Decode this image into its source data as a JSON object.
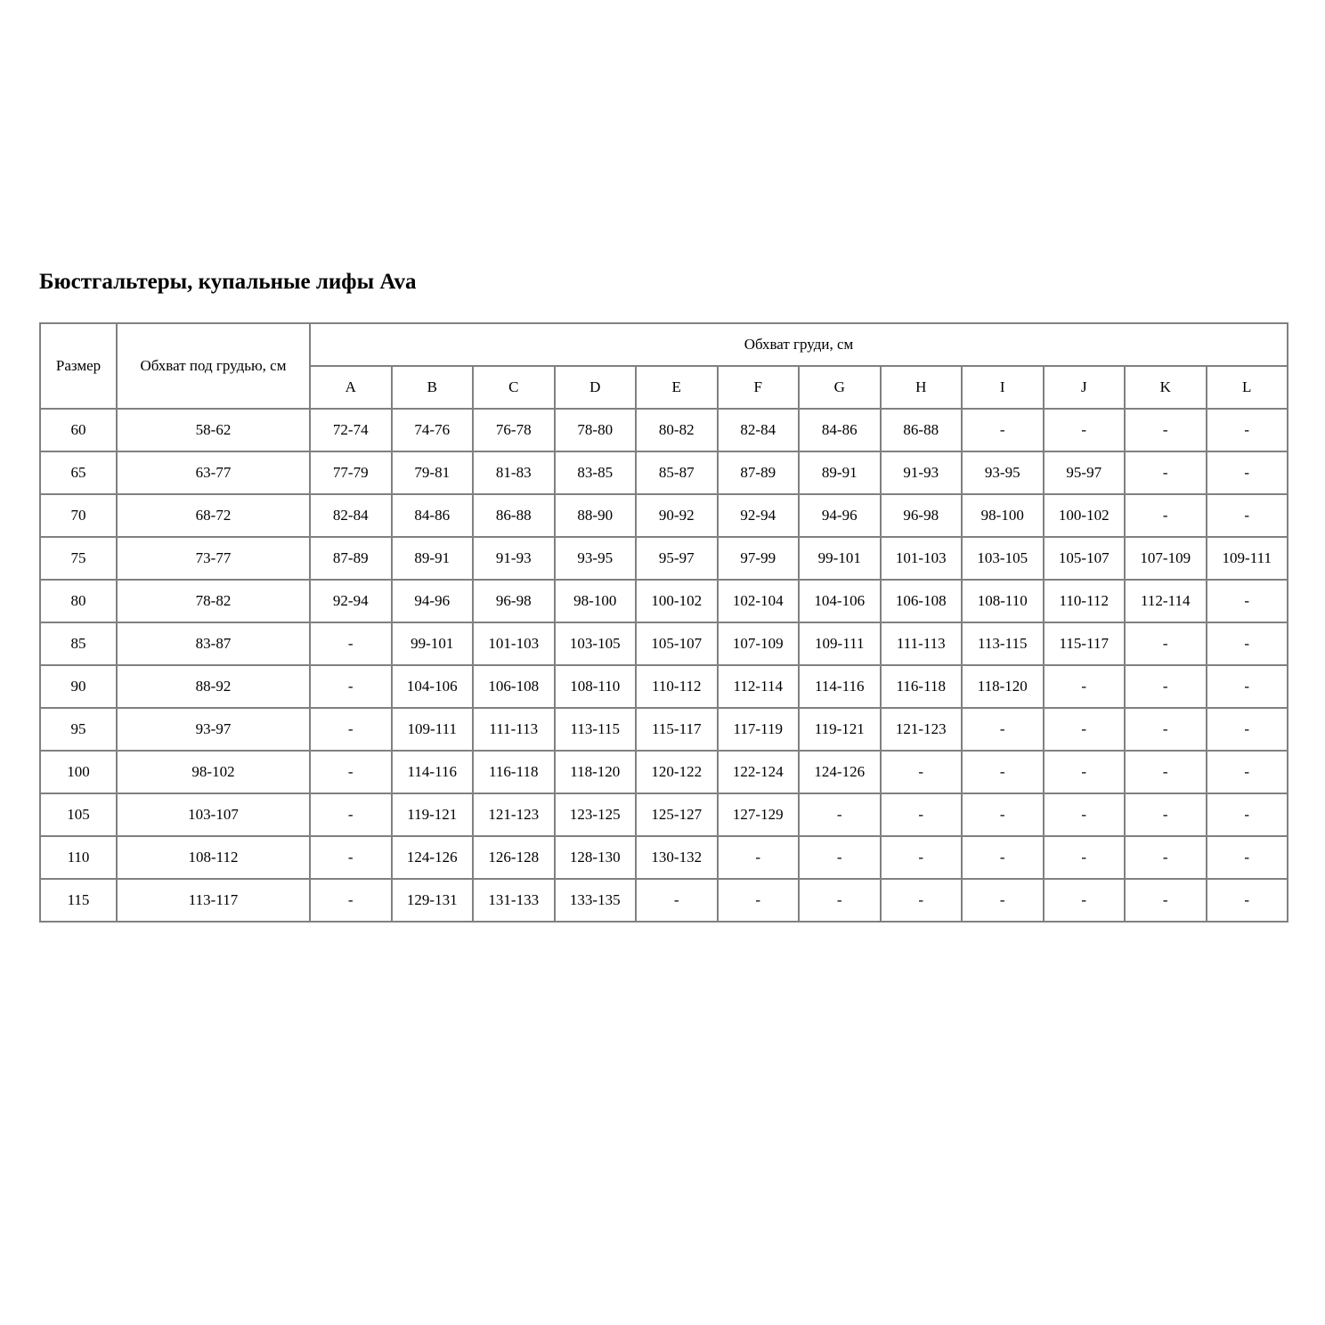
{
  "page": {
    "title": "Бюстгальтеры, купальные лифы Ava"
  },
  "colors": {
    "background": "#ffffff",
    "border": "#808080",
    "text": "#000000"
  },
  "table": {
    "header": {
      "size": "Размер",
      "underbust": "Обхват под грудью, см",
      "bust": "Обхват груди, см",
      "cups": [
        "A",
        "B",
        "C",
        "D",
        "E",
        "F",
        "G",
        "H",
        "I",
        "J",
        "K",
        "L"
      ]
    },
    "empty_marker": "-",
    "rows": [
      {
        "size": "60",
        "underbust": "58-62",
        "cups": [
          "72-74",
          "74-76",
          "76-78",
          "78-80",
          "80-82",
          "82-84",
          "84-86",
          "86-88",
          "-",
          "-",
          "-",
          "-"
        ]
      },
      {
        "size": "65",
        "underbust": "63-77",
        "cups": [
          "77-79",
          "79-81",
          "81-83",
          "83-85",
          "85-87",
          "87-89",
          "89-91",
          "91-93",
          "93-95",
          "95-97",
          "-",
          "-"
        ]
      },
      {
        "size": "70",
        "underbust": "68-72",
        "cups": [
          "82-84",
          "84-86",
          "86-88",
          "88-90",
          "90-92",
          "92-94",
          "94-96",
          "96-98",
          "98-100",
          "100-102",
          "-",
          "-"
        ]
      },
      {
        "size": "75",
        "underbust": "73-77",
        "cups": [
          "87-89",
          "89-91",
          "91-93",
          "93-95",
          "95-97",
          "97-99",
          "99-101",
          "101-103",
          "103-105",
          "105-107",
          "107-109",
          "109-111"
        ]
      },
      {
        "size": "80",
        "underbust": "78-82",
        "cups": [
          "92-94",
          "94-96",
          "96-98",
          "98-100",
          "100-102",
          "102-104",
          "104-106",
          "106-108",
          "108-110",
          "110-112",
          "112-114",
          "-"
        ]
      },
      {
        "size": "85",
        "underbust": "83-87",
        "cups": [
          "-",
          "99-101",
          "101-103",
          "103-105",
          "105-107",
          "107-109",
          "109-111",
          "111-113",
          "113-115",
          "115-117",
          "-",
          "-"
        ]
      },
      {
        "size": "90",
        "underbust": "88-92",
        "cups": [
          "-",
          "104-106",
          "106-108",
          "108-110",
          "110-112",
          "112-114",
          "114-116",
          "116-118",
          "118-120",
          "-",
          "-",
          "-"
        ]
      },
      {
        "size": "95",
        "underbust": "93-97",
        "cups": [
          "-",
          "109-111",
          "111-113",
          "113-115",
          "115-117",
          "117-119",
          "119-121",
          "121-123",
          "-",
          "-",
          "-",
          "-"
        ]
      },
      {
        "size": "100",
        "underbust": "98-102",
        "cups": [
          "-",
          "114-116",
          "116-118",
          "118-120",
          "120-122",
          "122-124",
          "124-126",
          "-",
          "-",
          "-",
          "-",
          "-"
        ]
      },
      {
        "size": "105",
        "underbust": "103-107",
        "cups": [
          "-",
          "119-121",
          "121-123",
          "123-125",
          "125-127",
          "127-129",
          "-",
          "-",
          "-",
          "-",
          "-",
          "-"
        ]
      },
      {
        "size": "110",
        "underbust": "108-112",
        "cups": [
          "-",
          "124-126",
          "126-128",
          "128-130",
          "130-132",
          "-",
          "-",
          "-",
          "-",
          "-",
          "-",
          "-"
        ]
      },
      {
        "size": "115",
        "underbust": "113-117",
        "cups": [
          "-",
          "129-131",
          "131-133",
          "133-135",
          "-",
          "-",
          "-",
          "-",
          "-",
          "-",
          "-",
          "-"
        ]
      }
    ]
  }
}
